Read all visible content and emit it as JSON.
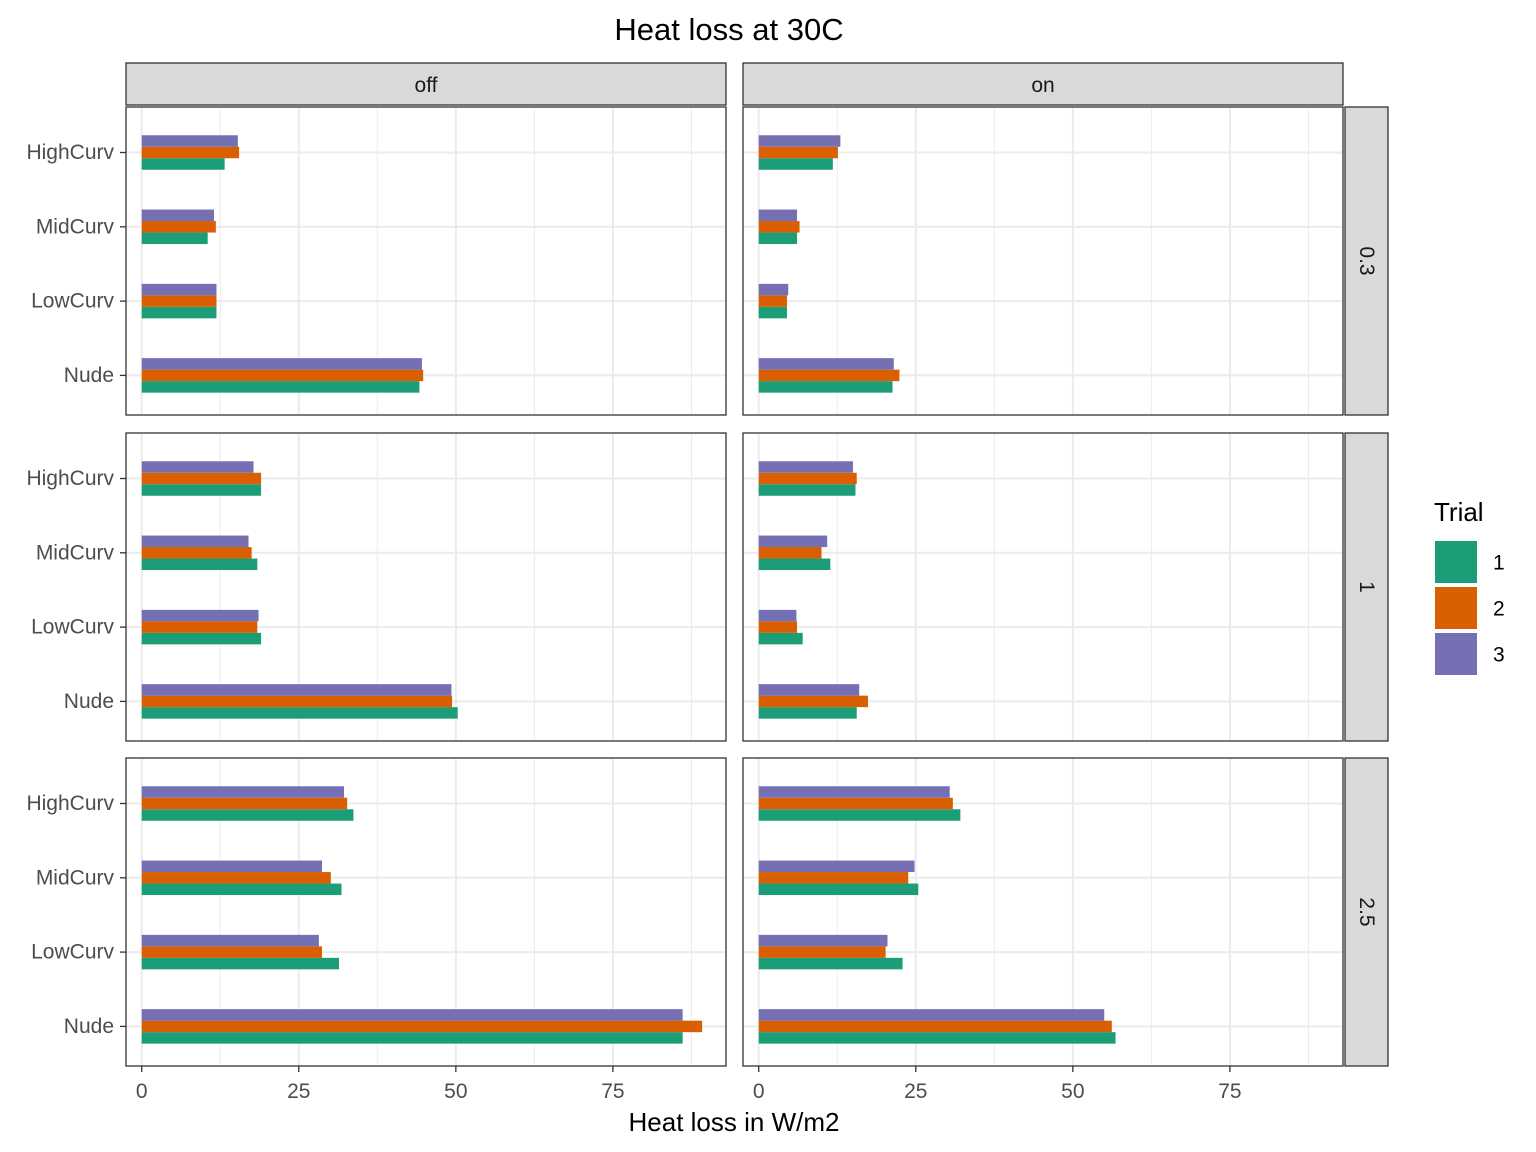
{
  "chart_data": {
    "type": "bar",
    "orientation": "horizontal",
    "title": "Heat loss at 30C",
    "xlabel": "Heat loss in W/m2",
    "ylabel": "",
    "xlim": [
      -2.5,
      93
    ],
    "x_ticks": [
      "0",
      "25",
      "50",
      "75"
    ],
    "categories": [
      "HighCurv",
      "MidCurv",
      "LowCurv",
      "Nude"
    ],
    "column_facets": [
      "off",
      "on"
    ],
    "row_facets": [
      "0.3",
      "1",
      "2.5"
    ],
    "legend": {
      "title": "Trial",
      "position": "right",
      "entries": [
        {
          "label": "1",
          "color": "#1B9E77"
        },
        {
          "label": "2",
          "color": "#D95F02"
        },
        {
          "label": "3",
          "color": "#7570B3"
        }
      ]
    },
    "grid": true,
    "panels": [
      {
        "column": "off",
        "row": "0.3",
        "series": [
          {
            "trial": "1",
            "values": [
              13.2,
              10.5,
              11.9,
              44.2
            ]
          },
          {
            "trial": "2",
            "values": [
              15.5,
              11.8,
              11.9,
              44.8
            ]
          },
          {
            "trial": "3",
            "values": [
              15.3,
              11.5,
              11.9,
              44.6
            ]
          }
        ]
      },
      {
        "column": "on",
        "row": "0.3",
        "series": [
          {
            "trial": "1",
            "values": [
              11.8,
              6.1,
              4.5,
              21.3
            ]
          },
          {
            "trial": "2",
            "values": [
              12.6,
              6.5,
              4.5,
              22.4
            ]
          },
          {
            "trial": "3",
            "values": [
              13.0,
              6.1,
              4.7,
              21.5
            ]
          }
        ]
      },
      {
        "column": "off",
        "row": "1",
        "series": [
          {
            "trial": "1",
            "values": [
              19.0,
              18.4,
              19.0,
              50.3
            ]
          },
          {
            "trial": "2",
            "values": [
              19.0,
              17.5,
              18.4,
              49.4
            ]
          },
          {
            "trial": "3",
            "values": [
              17.8,
              17.0,
              18.6,
              49.3
            ]
          }
        ]
      },
      {
        "column": "on",
        "row": "1",
        "series": [
          {
            "trial": "1",
            "values": [
              15.4,
              11.4,
              7.0,
              15.6
            ]
          },
          {
            "trial": "2",
            "values": [
              15.6,
              10.0,
              6.1,
              17.4
            ]
          },
          {
            "trial": "3",
            "values": [
              15.0,
              10.9,
              6.0,
              16.0
            ]
          }
        ]
      },
      {
        "column": "off",
        "row": "2.5",
        "series": [
          {
            "trial": "1",
            "values": [
              33.7,
              31.8,
              31.4,
              86.1
            ]
          },
          {
            "trial": "2",
            "values": [
              32.7,
              30.1,
              28.7,
              89.2
            ]
          },
          {
            "trial": "3",
            "values": [
              32.2,
              28.7,
              28.2,
              86.1
            ]
          }
        ]
      },
      {
        "column": "on",
        "row": "2.5",
        "series": [
          {
            "trial": "1",
            "values": [
              32.1,
              25.4,
              22.9,
              56.8
            ]
          },
          {
            "trial": "2",
            "values": [
              30.9,
              23.8,
              20.2,
              56.2
            ]
          },
          {
            "trial": "3",
            "values": [
              30.4,
              24.8,
              20.5,
              55.0
            ]
          }
        ]
      }
    ]
  }
}
